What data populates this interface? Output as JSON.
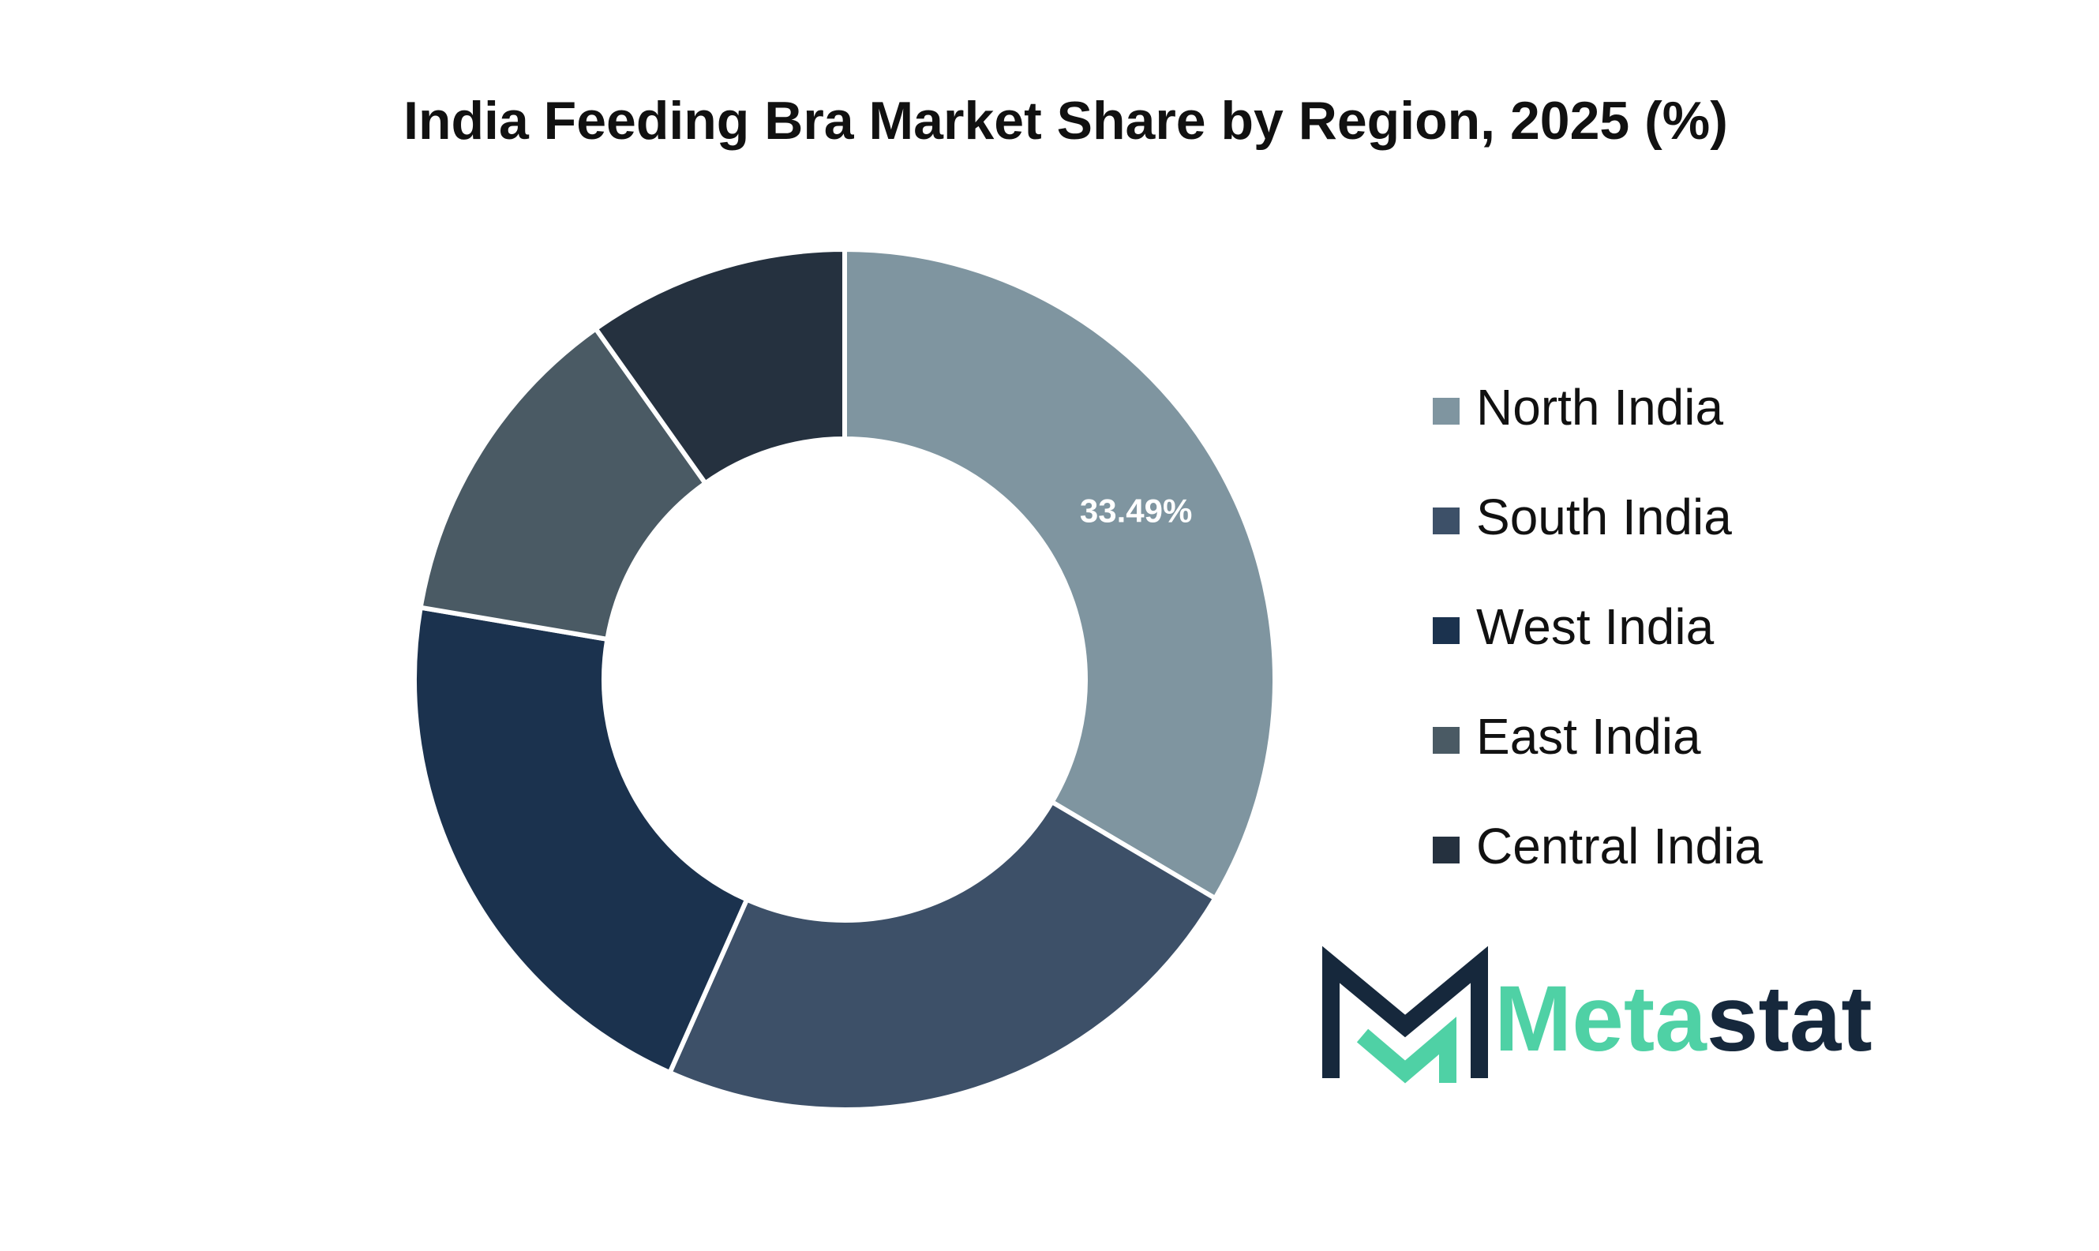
{
  "chart_data": {
    "type": "donut",
    "title": "India Feeding Bra Market Share by Region, 2025 (%)",
    "categories": [
      "North India",
      "South India",
      "West India",
      "East India",
      "Central India"
    ],
    "values": [
      33.49,
      23.17,
      21.02,
      12.5,
      9.82
    ],
    "value_labels": [
      "33.49%",
      null,
      null,
      null,
      null
    ],
    "colors": [
      "#7f95a0",
      "#3d5068",
      "#1b324e",
      "#4a5a64",
      "#25313f"
    ],
    "legend": "right"
  },
  "logo": {
    "parts": [
      "Meta",
      "stat"
    ]
  }
}
